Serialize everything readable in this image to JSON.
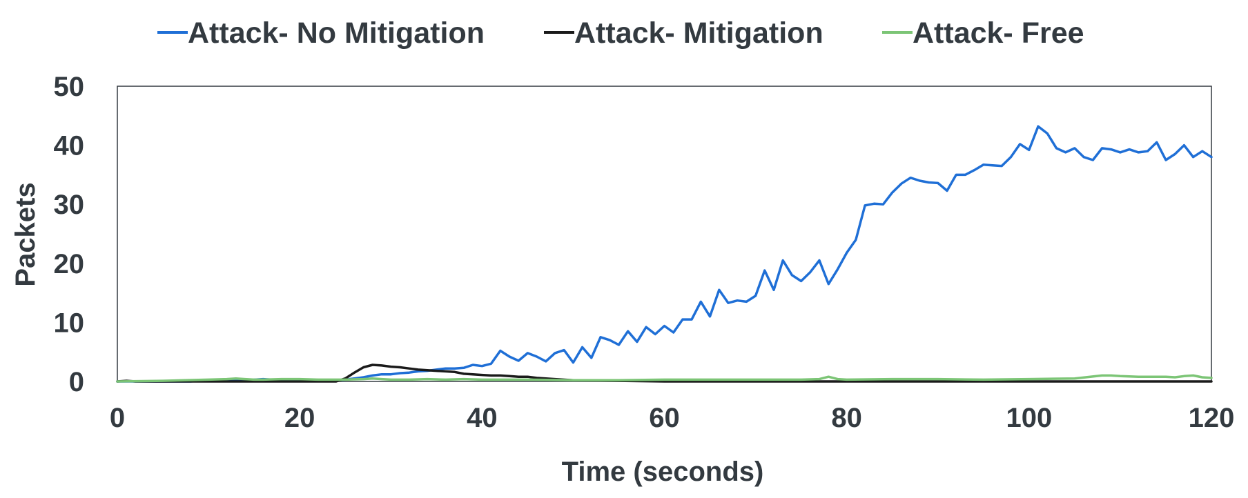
{
  "chart_data": {
    "type": "line",
    "xlabel": "Time (seconds)",
    "ylabel": "Packets",
    "xlim": [
      0,
      120
    ],
    "ylim": [
      0,
      50
    ],
    "xticks": [
      0,
      20,
      40,
      60,
      80,
      100,
      120
    ],
    "yticks": [
      0,
      10,
      20,
      30,
      40,
      50
    ],
    "grid": false,
    "legend_position": "top",
    "series": [
      {
        "name": "Attack- No Mitigation",
        "color": "#1f6fd6",
        "x": [
          0,
          2,
          4,
          6,
          8,
          10,
          12,
          14,
          16,
          18,
          20,
          22,
          24,
          25,
          26,
          27,
          28,
          29,
          30,
          31,
          32,
          33,
          34,
          35,
          36,
          37,
          38,
          39,
          40,
          41,
          42,
          43,
          44,
          45,
          46,
          47,
          48,
          49,
          50,
          51,
          52,
          53,
          54,
          55,
          56,
          57,
          58,
          59,
          60,
          61,
          62,
          63,
          64,
          65,
          66,
          67,
          68,
          69,
          70,
          71,
          72,
          73,
          74,
          75,
          76,
          77,
          78,
          79,
          80,
          81,
          82,
          83,
          84,
          85,
          86,
          87,
          88,
          89,
          90,
          91,
          92,
          93,
          94,
          95,
          96,
          97,
          98,
          99,
          100,
          101,
          102,
          103,
          104,
          105,
          106,
          107,
          108,
          109,
          110,
          111,
          112,
          113,
          114,
          115,
          116,
          117,
          118,
          119,
          120
        ],
        "y": [
          0,
          0,
          0,
          0,
          0,
          0.2,
          0.3,
          0.2,
          0.4,
          0.2,
          0.3,
          0.2,
          0.2,
          0.3,
          0.5,
          0.7,
          1,
          1.2,
          1.2,
          1.4,
          1.5,
          1.7,
          1.8,
          2,
          2.2,
          2.2,
          2.3,
          2.8,
          2.6,
          3,
          5.2,
          4.2,
          3.5,
          4.8,
          4.2,
          3.4,
          4.8,
          5.3,
          3.2,
          5.8,
          4,
          7.5,
          7,
          6.2,
          8.5,
          6.7,
          9.2,
          8,
          9.4,
          8.3,
          10.5,
          10.5,
          13.5,
          11,
          15.5,
          13.3,
          13.7,
          13.5,
          14.5,
          18.8,
          15.5,
          20.5,
          18,
          17,
          18.5,
          20.5,
          16.5,
          19,
          21.8,
          24,
          29.8,
          30.1,
          30,
          32,
          33.5,
          34.5,
          34,
          33.7,
          33.6,
          32.3,
          35,
          35,
          35.8,
          36.7,
          36.6,
          36.5,
          38,
          40.2,
          39.2,
          43.2,
          42,
          39.5,
          38.8,
          39.5,
          38,
          37.5,
          39.5,
          39.3,
          38.8,
          39.3,
          38.8,
          39,
          40.5,
          37.5,
          38.5,
          40,
          38,
          39,
          38
        ]
      },
      {
        "name": "Attack- Mitigation",
        "color": "#1a1a1a",
        "x": [
          0,
          1,
          2,
          4,
          6,
          8,
          10,
          12,
          14,
          16,
          18,
          20,
          22,
          24,
          25,
          26,
          27,
          28,
          29,
          30,
          31,
          32,
          33,
          34,
          35,
          36,
          37,
          38,
          39,
          40,
          41,
          42,
          43,
          44,
          45,
          46,
          47,
          48,
          50,
          55,
          60,
          65,
          70,
          75,
          80,
          85,
          90,
          95,
          100,
          105,
          110,
          115,
          120
        ],
        "y": [
          0,
          0.1,
          0,
          0,
          0,
          0,
          0,
          0,
          0,
          0,
          0,
          0,
          0,
          0,
          0.5,
          1.5,
          2.4,
          2.8,
          2.7,
          2.5,
          2.4,
          2.2,
          2,
          1.9,
          1.8,
          1.7,
          1.6,
          1.3,
          1.2,
          1.1,
          1,
          1,
          0.9,
          0.8,
          0.8,
          0.6,
          0.5,
          0.4,
          0.2,
          0.1,
          0,
          0,
          0,
          0,
          0,
          0,
          0,
          0,
          0,
          0,
          0,
          0,
          0
        ]
      },
      {
        "name": "Attack- Free",
        "color": "#7cc576",
        "x": [
          0,
          5,
          10,
          12,
          13,
          14,
          15,
          16,
          18,
          20,
          22,
          24,
          25,
          27,
          28,
          29,
          30,
          32,
          34,
          36,
          38,
          40,
          45,
          50,
          55,
          60,
          65,
          70,
          75,
          77,
          78,
          79,
          80,
          85,
          90,
          95,
          100,
          105,
          108,
          109,
          110,
          112,
          115,
          116,
          117,
          118,
          119,
          120
        ],
        "y": [
          0,
          0.1,
          0.3,
          0.4,
          0.5,
          0.4,
          0.3,
          0.3,
          0.4,
          0.4,
          0.3,
          0.3,
          0.3,
          0.4,
          0.5,
          0.4,
          0.3,
          0.3,
          0.4,
          0.3,
          0.4,
          0.3,
          0.3,
          0.2,
          0.2,
          0.3,
          0.3,
          0.3,
          0.3,
          0.4,
          0.8,
          0.4,
          0.3,
          0.4,
          0.4,
          0.3,
          0.4,
          0.5,
          1,
          1,
          0.9,
          0.8,
          0.8,
          0.7,
          0.9,
          1,
          0.7,
          0.6
        ]
      }
    ]
  }
}
